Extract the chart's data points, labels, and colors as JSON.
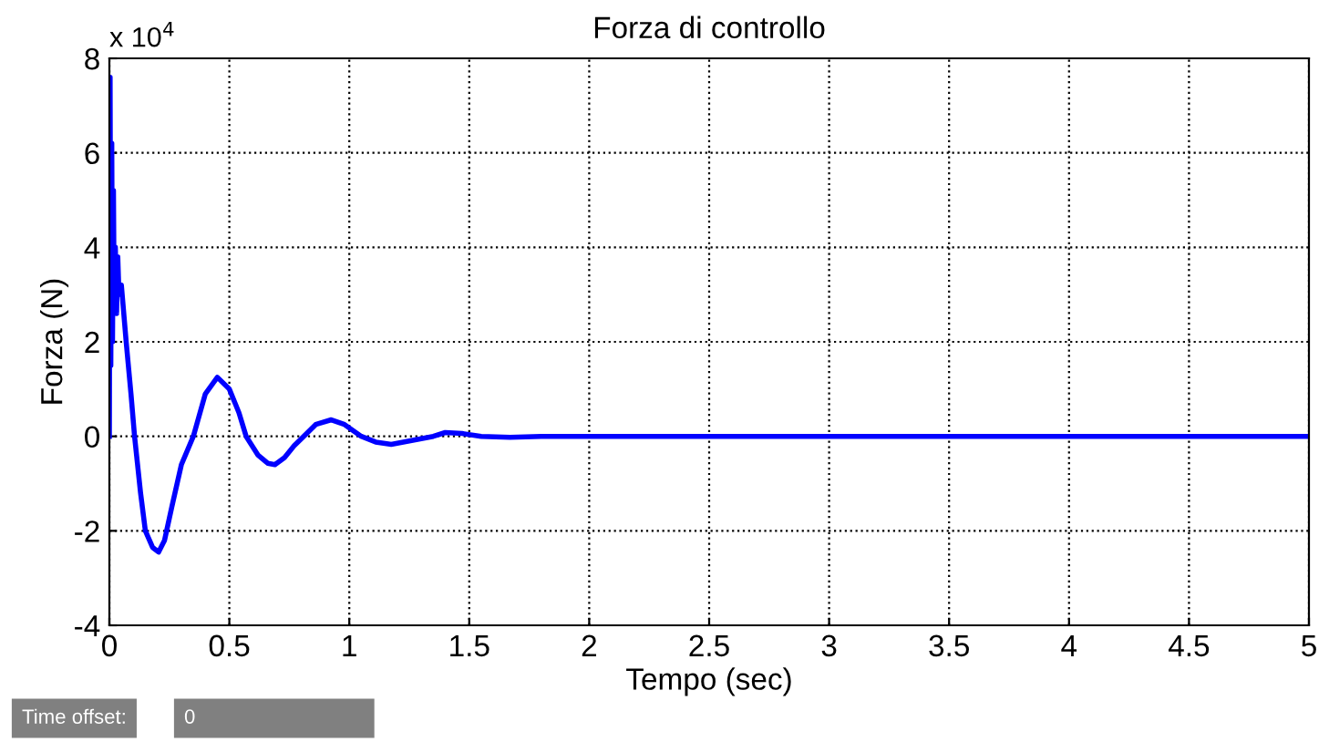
{
  "chart_data": {
    "type": "line",
    "title": "Forza di controllo",
    "xlabel": "Tempo (sec)",
    "ylabel": "Forza (N)",
    "x": [
      0,
      0.003,
      0.006,
      0.01,
      0.013,
      0.017,
      0.02,
      0.025,
      0.03,
      0.035,
      0.04,
      0.05,
      0.07,
      0.09,
      0.105,
      0.13,
      0.15,
      0.18,
      0.205,
      0.23,
      0.26,
      0.3,
      0.35,
      0.4,
      0.45,
      0.5,
      0.54,
      0.57,
      0.62,
      0.66,
      0.69,
      0.73,
      0.77,
      0.81,
      0.86,
      0.925,
      0.98,
      1.05,
      1.11,
      1.175,
      1.25,
      1.35,
      1.4,
      1.47,
      1.55,
      1.67,
      1.8,
      2.0,
      3.0,
      4.0,
      5.0
    ],
    "series": [
      {
        "color": "#0000ff",
        "values": [
          0,
          7.6,
          1.5,
          6.2,
          2.0,
          5.2,
          2.8,
          4.0,
          2.6,
          3.8,
          3.0,
          3.2,
          2.0,
          0.9,
          0,
          -1.2,
          -2.0,
          -2.35,
          -2.45,
          -2.2,
          -1.5,
          -0.6,
          0,
          0.9,
          1.25,
          1.0,
          0.5,
          0,
          -0.4,
          -0.57,
          -0.6,
          -0.45,
          -0.2,
          0,
          0.25,
          0.35,
          0.25,
          0,
          -0.12,
          -0.17,
          -0.1,
          0,
          0.08,
          0.06,
          0,
          -0.02,
          0,
          0,
          0,
          0,
          0
        ]
      }
    ],
    "xlim": [
      0,
      5
    ],
    "ylim": [
      -4,
      8
    ],
    "xticks": [
      0,
      0.5,
      1,
      1.5,
      2,
      2.5,
      3,
      3.5,
      4,
      4.5,
      5
    ],
    "yticks": [
      -4,
      -2,
      0,
      2,
      4,
      6,
      8
    ],
    "grid": true,
    "line_style": "solid",
    "marker": "none",
    "annotations": [
      "x 10$^{4}$",
      "Time offset:",
      "0"
    ]
  }
}
